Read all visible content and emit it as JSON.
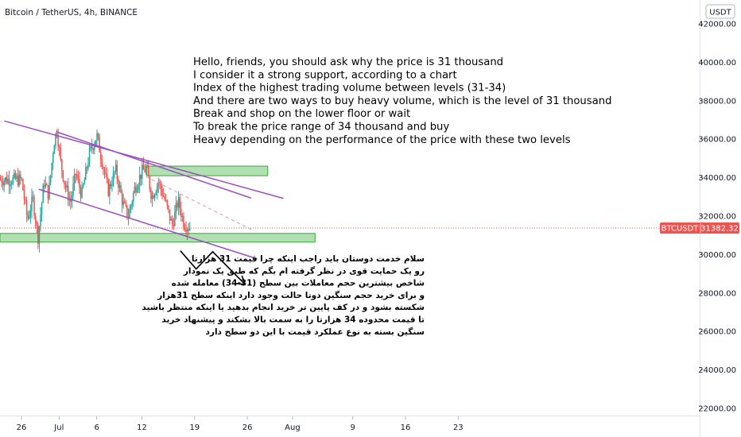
{
  "header": {
    "title": "Bitcoin / TetherUS, 4h, BINANCE",
    "currency": "USDT"
  },
  "price_tag": {
    "symbol": "BTCUSDT",
    "value": "31382.32"
  },
  "colors": {
    "up": "#26a69a",
    "down": "#ef5350",
    "channel": "#9c4fc1",
    "zone_fill": "#8ed38e",
    "zone_stroke": "#3fa43f",
    "tag_bg": "#ef5350"
  },
  "notes": {
    "english": [
      "Hello, friends, you should ask why the price is 31 thousand",
      "I consider it a strong support, according to a chart",
      "Index of the highest trading volume between levels (31-34)",
      "And there are two ways to buy heavy volume, which is the level of 31 thousand",
      "Break and shop on the lower floor or wait",
      "To break the price range of 34 thousand and buy",
      "Heavy depending on the performance of the price with these two levels"
    ],
    "persian": [
      "سلام خدمت دوستان باید راجب اینکه چرا قیمت 31 هزارتا",
      "رو یک حمایت قوی در نظر گرفته ام بگم که طبق یک نمودار",
      "شاخص بیشترین حجم معاملات بین سطح (31-34) معامله شده",
      "و برای خرید حجم سنگین دوتا حالت وجود دارد اینکه سطح 31هزار",
      "شکسته بشود و در کف پایین تر خرید انجام بدهید یا اینکه منتظر باشید",
      "تا قیمت محدوده 34 هزارتا را به سمت بالا بشکند و پیشنهاد خرید",
      "سنگین بسته به نوع عملکرد قیمت با این دو سطح دارد"
    ]
  },
  "chart_data": {
    "type": "candlestick",
    "symbol": "BTCUSDT",
    "interval": "4h",
    "exchange": "BINANCE",
    "y_axis": {
      "ticks": [
        "42000.00",
        "40000.00",
        "38000.00",
        "36000.00",
        "34000.00",
        "32000.00",
        "30000.00",
        "28000.00",
        "26000.00",
        "24000.00",
        "22000.00"
      ],
      "range": [
        21600,
        43500
      ]
    },
    "x_axis": {
      "ticks": [
        "26",
        "Jul",
        "6",
        "12",
        "19",
        "26",
        "Aug",
        "9",
        "16",
        "23"
      ],
      "tick_days": [
        0,
        5,
        10,
        16,
        23,
        30,
        36,
        44,
        51,
        58
      ]
    },
    "last_price": 31382.32,
    "price_path": [
      [
        0,
        33900
      ],
      [
        0.8,
        31800
      ],
      [
        1.5,
        32900
      ],
      [
        2.2,
        30900
      ],
      [
        3,
        33800
      ],
      [
        3.6,
        33100
      ],
      [
        4.3,
        35800
      ],
      [
        4.7,
        36500
      ],
      [
        5.2,
        34800
      ],
      [
        5.8,
        33600
      ],
      [
        6.5,
        32700
      ],
      [
        7.2,
        34200
      ],
      [
        8,
        33100
      ],
      [
        9,
        35200
      ],
      [
        10,
        36200
      ],
      [
        10.8,
        34700
      ],
      [
        11.5,
        33300
      ],
      [
        12.5,
        34400
      ],
      [
        13.5,
        32600
      ],
      [
        14.2,
        32000
      ],
      [
        15,
        33400
      ],
      [
        16,
        34300
      ],
      [
        16.6,
        34500
      ],
      [
        17.3,
        33000
      ],
      [
        18.2,
        33800
      ],
      [
        19,
        32900
      ],
      [
        20,
        31500
      ],
      [
        20.8,
        32800
      ],
      [
        21.6,
        31600
      ],
      [
        22.4,
        31400
      ]
    ],
    "zones": [
      {
        "name": "resistance-zone",
        "day_start": 16.6,
        "day_end": 32.7,
        "low": 34100,
        "high": 34600
      },
      {
        "name": "support-zone",
        "day_start": -3,
        "day_end": 39,
        "low": 30650,
        "high": 31100
      }
    ],
    "trendlines": [
      {
        "name": "upper-line-long",
        "from": [
          -2.3,
          36950
        ],
        "to": [
          34.8,
          32920
        ]
      },
      {
        "name": "upper-line-short",
        "from": [
          4.6,
          36390
        ],
        "to": [
          30.5,
          32940
        ]
      },
      {
        "name": "lower-line",
        "from": [
          2.3,
          33400
        ],
        "to": [
          31.3,
          29780
        ]
      },
      {
        "name": "dashed-midline",
        "from": [
          15.8,
          34200
        ],
        "to": [
          30.7,
          31270
        ]
      }
    ],
    "projection_path": [
      [
        21.1,
        30200
      ],
      [
        23.2,
        29250
      ],
      [
        25.4,
        30150
      ],
      [
        29.7,
        28450
      ]
    ],
    "projection_arrow_tip": [
      29.7,
      28450
    ]
  }
}
